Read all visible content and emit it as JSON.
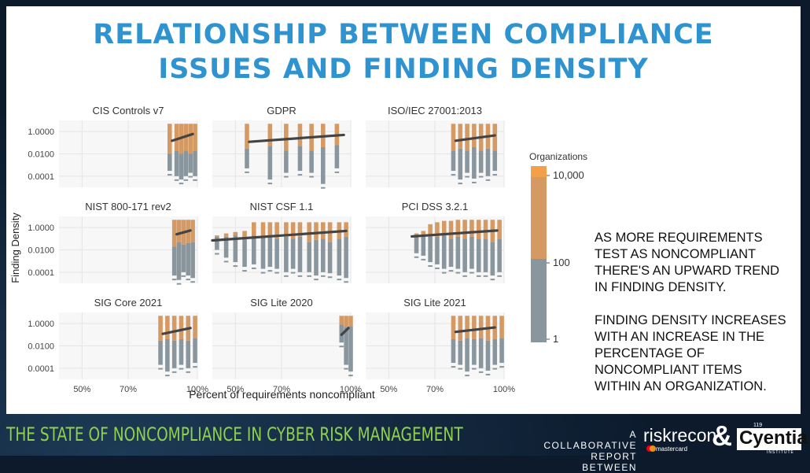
{
  "title": {
    "line1": "RELATIONSHIP BETWEEN COMPLIANCE",
    "line2": "ISSUES AND FINDING DENSITY"
  },
  "chart_data": {
    "type": "bar",
    "xlabel": "Percent of requirements noncompliant",
    "ylabel": "Finding Density",
    "x_ticks": [
      "50%",
      "70%",
      "100%"
    ],
    "x_range": [
      40,
      100
    ],
    "y_ticks": [
      "1.0000",
      "0.0100",
      "0.0001"
    ],
    "y_scale": "log",
    "y_range": [
      1e-05,
      10
    ],
    "legend": {
      "title": "Organizations",
      "labels": [
        "10,000",
        "100",
        "1"
      ],
      "colors": {
        "high": "#f2a14a",
        "mid": "#d59a63",
        "low": "#8a969e"
      }
    },
    "trend_color": "#444444",
    "panels": [
      {
        "title": "CIS Controls v7",
        "x": [
          88,
          91,
          93,
          95,
          97,
          99
        ],
        "top": [
          5,
          5,
          5,
          5,
          5,
          5
        ],
        "mid": [
          0.01,
          0.02,
          0.01,
          0.02,
          0.01,
          0.02
        ],
        "bottom": [
          0.0003,
          0.0001,
          5e-05,
          0.0001,
          0.0002,
          0.0001
        ],
        "trend": [
          [
            89,
            0.15
          ],
          [
            98,
            0.6
          ]
        ]
      },
      {
        "title": "GDPR",
        "x": [
          55,
          65,
          72,
          78,
          83,
          88,
          94
        ],
        "top": [
          5,
          5,
          5,
          5,
          5,
          5,
          5
        ],
        "mid": [
          0.03,
          0.05,
          0.02,
          0.05,
          0.02,
          0.04,
          0.06
        ],
        "bottom": [
          0.0005,
          5e-05,
          0.0002,
          0.0003,
          0.0002,
          2e-05,
          0.0005
        ],
        "trend": [
          [
            56,
            0.12
          ],
          [
            97,
            0.5
          ]
        ]
      },
      {
        "title": "ISO/IEC 27001:2013",
        "x": [
          78,
          81,
          84,
          87,
          90,
          93,
          96
        ],
        "top": [
          5,
          5,
          5,
          5,
          5,
          5,
          5
        ],
        "mid": [
          0.02,
          0.03,
          0.02,
          0.04,
          0.02,
          0.03,
          0.02
        ],
        "bottom": [
          0.0003,
          5e-05,
          0.0002,
          6e-05,
          0.0002,
          0.0001,
          0.0003
        ],
        "trend": [
          [
            79,
            0.15
          ],
          [
            96,
            0.45
          ]
        ]
      },
      {
        "title": "NIST 800-171 rev2",
        "x": [
          90,
          92,
          94,
          96,
          98
        ],
        "top": [
          5,
          5,
          5,
          5,
          5
        ],
        "mid": [
          0.02,
          0.05,
          0.03,
          0.04,
          0.05
        ],
        "bottom": [
          5e-05,
          2e-05,
          0.0001,
          5e-05,
          3e-05
        ],
        "trend": [
          [
            91,
            0.25
          ],
          [
            97,
            0.55
          ]
        ]
      },
      {
        "title": "NIST CSF 1.1",
        "x": [
          42,
          46,
          50,
          54,
          58,
          62,
          65,
          68,
          72,
          75,
          78,
          82,
          85,
          88,
          91,
          95,
          98
        ],
        "top": [
          0.2,
          0.3,
          0.4,
          0.5,
          3,
          3,
          3,
          3,
          3,
          3,
          3,
          3,
          3,
          3,
          3,
          3,
          3
        ],
        "mid": [
          0.15,
          0.15,
          0.2,
          0.15,
          0.2,
          0.15,
          0.2,
          0.1,
          0.15,
          0.1,
          0.15,
          0.05,
          0.08,
          0.1,
          0.05,
          0.1,
          0.15
        ],
        "bottom": [
          0.01,
          0.002,
          0.0008,
          0.0003,
          0.0005,
          0.0002,
          0.0003,
          0.0002,
          0.0001,
          0.0002,
          0.0001,
          0.0001,
          5e-05,
          0.0001,
          8e-05,
          5e-05,
          3e-05
        ],
        "trend": [
          [
            40,
            0.07
          ],
          [
            98,
            0.5
          ]
        ]
      },
      {
        "title": "PCI DSS 3.2.1",
        "x": [
          62,
          65,
          68,
          71,
          74,
          77,
          80,
          83,
          86,
          89,
          92,
          95,
          98
        ],
        "top": [
          0.3,
          0.5,
          2,
          3,
          4,
          4,
          5,
          5,
          5,
          5,
          5,
          5,
          5
        ],
        "mid": [
          0.15,
          0.2,
          0.2,
          0.15,
          0.2,
          0.1,
          0.15,
          0.1,
          0.15,
          0.1,
          0.1,
          0.05,
          0.1
        ],
        "bottom": [
          0.005,
          0.003,
          0.0008,
          0.0005,
          0.0002,
          0.0003,
          0.0002,
          0.0001,
          0.0002,
          0.0001,
          0.0001,
          5e-05,
          0.0001
        ],
        "trend": [
          [
            60,
            0.16
          ],
          [
            97,
            0.55
          ]
        ]
      },
      {
        "title": "SIG Core 2021",
        "x": [
          84,
          87,
          90,
          93,
          96,
          99
        ],
        "top": [
          5,
          5,
          5,
          5,
          5,
          5
        ],
        "mid": [
          0.03,
          0.04,
          0.03,
          0.04,
          0.03,
          0.05
        ],
        "bottom": [
          0.0002,
          5e-05,
          0.0001,
          0.0002,
          0.0001,
          0.0003
        ],
        "trend": [
          [
            85,
            0.12
          ],
          [
            97,
            0.4
          ]
        ]
      },
      {
        "title": "SIG Lite 2020",
        "x": [
          96,
          98,
          100
        ],
        "top": [
          5,
          5,
          5
        ],
        "mid": [
          0.8,
          0.5,
          0.6
        ],
        "bottom": [
          0.02,
          0.0002,
          5e-05
        ],
        "trend": [
          [
            96,
            0.1
          ],
          [
            99,
            0.4
          ]
        ]
      },
      {
        "title": "SIG Lite 2021",
        "x": [
          78,
          81,
          84,
          87,
          90,
          93,
          96,
          99
        ],
        "top": [
          5,
          5,
          5,
          5,
          5,
          5,
          5,
          5
        ],
        "mid": [
          0.04,
          0.03,
          0.05,
          0.04,
          0.05,
          0.03,
          0.04,
          0.05
        ],
        "bottom": [
          0.0003,
          0.0002,
          5e-05,
          0.0002,
          0.0001,
          6e-05,
          0.0002,
          0.0003
        ],
        "trend": [
          [
            79,
            0.18
          ],
          [
            96,
            0.45
          ]
        ]
      }
    ]
  },
  "notes": {
    "p1": [
      "AS MORE REQUIREMENTS",
      "TEST AS NONCOMPLIANT",
      "THERE'S AN UPWARD TREND",
      "IN FINDING DENSITY."
    ],
    "p2": [
      "FINDING DENSITY INCREASES",
      "WITH AN INCREASE IN THE",
      "PERCENTAGE OF",
      "NONCOMPLIANT ITEMS",
      "WITHIN AN ORGANIZATION."
    ]
  },
  "footer": {
    "title": "THE STATE OF NONCOMPLIANCE IN CYBER RISK MANAGEMENT",
    "collab1": "A COLLABORATIVE",
    "collab2": "REPORT BETWEEN",
    "riskrecon": "riskrecon",
    "mastercard": "mastercard",
    "amp": "&",
    "cyentia": "Cyentia",
    "cyentia_num": "119",
    "cyentia_inst": "INSTITUTE"
  }
}
